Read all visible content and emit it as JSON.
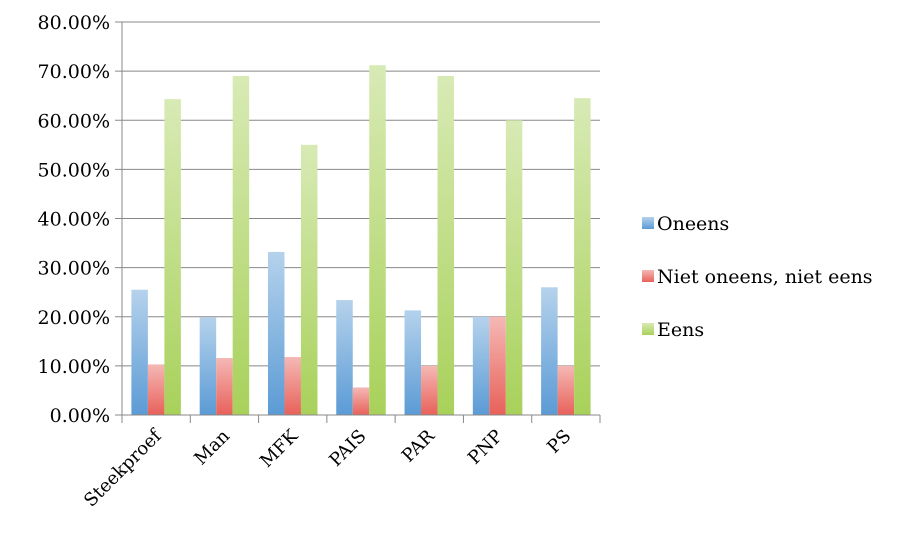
{
  "chart_data": {
    "type": "bar",
    "title": "",
    "xlabel": "",
    "ylabel": "",
    "categories": [
      "Steekproef",
      "Man",
      "MFK",
      "PAIS",
      "PAR",
      "PNP",
      "PS"
    ],
    "series": [
      {
        "name": "Oneens",
        "color": "#5b9bd5",
        "values": [
          25.5,
          19.9,
          33.2,
          23.4,
          21.3,
          20.0,
          26.0
        ]
      },
      {
        "name": "Niet oneens, niet eens",
        "color": "#e8615a",
        "values": [
          10.3,
          11.6,
          11.8,
          5.6,
          10.0,
          20.0,
          10.0
        ]
      },
      {
        "name": "Eens",
        "color": "#a8d15a",
        "values": [
          64.3,
          69.0,
          55.0,
          71.2,
          69.0,
          60.0,
          64.5
        ]
      }
    ],
    "ylim": [
      0,
      80
    ],
    "yticks": [
      "0.00%",
      "10.00%",
      "20.00%",
      "30.00%",
      "40.00%",
      "50.00%",
      "60.00%",
      "70.00%",
      "80.00%"
    ],
    "grid": "horizontal",
    "legend_position": "right"
  }
}
